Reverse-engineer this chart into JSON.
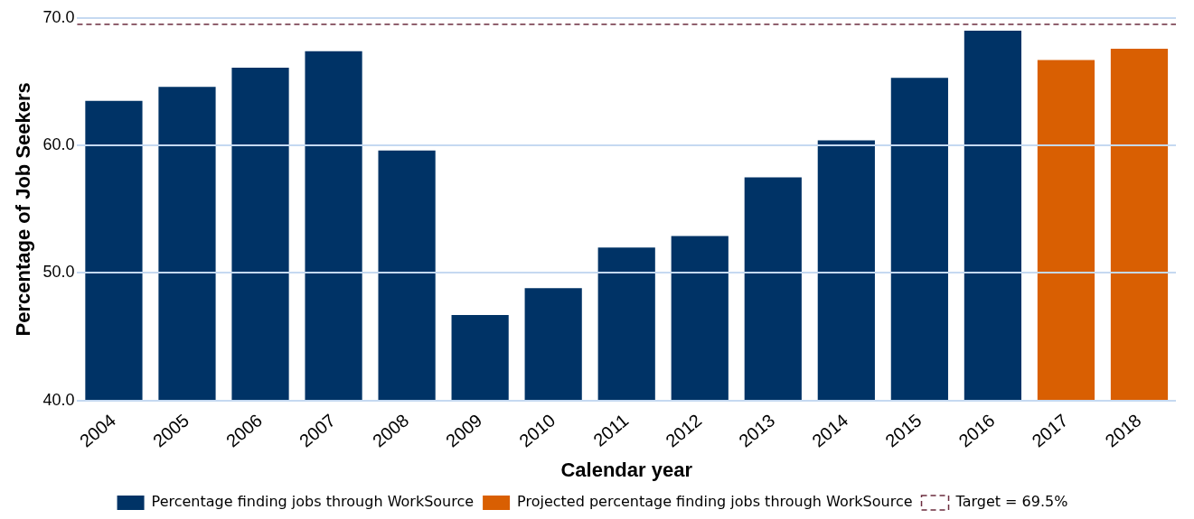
{
  "chart_data": {
    "type": "bar",
    "xlabel": "Calendar year",
    "ylabel": "Percentage of Job Seekers",
    "categories": [
      "2004",
      "2005",
      "2006",
      "2007",
      "2008",
      "2009",
      "2010",
      "2011",
      "2012",
      "2013",
      "2014",
      "2015",
      "2016",
      "2017",
      "2018"
    ],
    "series": [
      {
        "name": "Percentage finding jobs through WorkSource",
        "color": "#003366",
        "values": [
          63.5,
          64.6,
          66.1,
          67.4,
          59.6,
          46.7,
          48.8,
          52.0,
          52.9,
          57.5,
          60.4,
          65.3,
          69.0,
          null,
          null
        ]
      },
      {
        "name": "Projected percentage finding jobs through WorkSource",
        "color": "#d95f02",
        "values": [
          null,
          null,
          null,
          null,
          null,
          null,
          null,
          null,
          null,
          null,
          null,
          null,
          null,
          66.7,
          67.6
        ]
      }
    ],
    "ylim": [
      40,
      70
    ],
    "yticks": [
      {
        "value": 40,
        "label": "40.0"
      },
      {
        "value": 50,
        "label": "50.0"
      },
      {
        "value": 60,
        "label": "60.0"
      },
      {
        "value": 70,
        "label": "70.0"
      }
    ],
    "grid": "y",
    "legend": "bottom",
    "ref_lines": [
      {
        "axis": "y",
        "value": 69.5,
        "label": "Target = 69.5%",
        "color": "#6b2c3e",
        "line_style": "dashed"
      }
    ]
  }
}
